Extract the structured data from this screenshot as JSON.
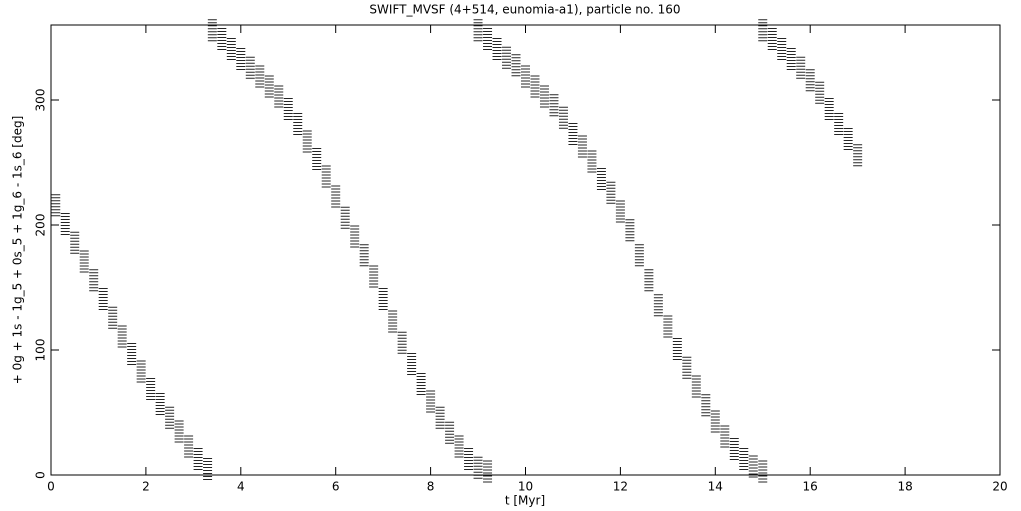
{
  "chart_data": {
    "type": "scatter",
    "title": "SWIFT_MVSF (4+514, eunomia-a1), particle no. 160",
    "x_label": "t [Myr]",
    "y_label": "+ 0g + 1s - 1g_5 + 0s_5 + 1g_6 - 1s_6 [deg]",
    "xlim": [
      0,
      20
    ],
    "ylim": [
      0,
      360
    ],
    "xticks": [
      0,
      2,
      4,
      6,
      8,
      10,
      12,
      14,
      16,
      18,
      20
    ],
    "yticks": [
      0,
      100,
      200,
      300
    ],
    "color": "#000000",
    "series": [
      {
        "x": [
          0.1,
          0.3,
          0.5,
          0.7,
          0.9,
          1.1,
          1.3,
          1.5,
          1.7,
          1.9,
          2.1,
          2.3,
          2.5,
          2.7,
          2.9,
          3.1,
          3.3,
          3.4,
          3.6,
          3.8,
          4.0,
          4.2,
          4.4,
          4.6,
          4.8,
          5.0,
          5.2,
          5.4,
          5.6,
          5.8,
          6.0,
          6.2,
          6.4,
          6.6,
          6.8,
          7.0,
          7.2,
          7.4,
          7.6,
          7.8,
          8.0,
          8.2,
          8.4,
          8.6,
          8.8,
          9.0,
          9.2,
          9.0,
          9.2,
          9.4,
          9.6,
          9.8,
          10.0,
          10.2,
          10.4,
          10.6,
          10.8,
          11.0,
          11.2,
          11.4,
          11.6,
          11.8,
          12.0,
          12.2,
          12.4,
          12.6,
          12.8,
          13.0,
          13.2,
          13.4,
          13.6,
          13.8,
          14.0,
          14.2,
          14.4,
          14.6,
          14.8,
          15.0,
          15.0,
          15.2,
          15.4,
          15.6,
          15.8,
          16.0,
          16.2,
          16.4,
          16.6,
          16.8,
          17.0
        ],
        "values": [
          215,
          200,
          185,
          170,
          155,
          140,
          125,
          110,
          96,
          82,
          68,
          56,
          45,
          34,
          22,
          12,
          4,
          355,
          348,
          340,
          332,
          325,
          318,
          310,
          302,
          292,
          280,
          266,
          252,
          238,
          222,
          205,
          190,
          175,
          158,
          140,
          122,
          105,
          88,
          72,
          58,
          45,
          33,
          22,
          12,
          5,
          2,
          355,
          348,
          340,
          333,
          327,
          318,
          310,
          302,
          295,
          285,
          272,
          262,
          250,
          236,
          225,
          210,
          195,
          175,
          155,
          135,
          118,
          100,
          85,
          70,
          55,
          42,
          30,
          20,
          12,
          6,
          2,
          355,
          348,
          340,
          332,
          325,
          315,
          305,
          292,
          280,
          268,
          255
        ]
      }
    ]
  }
}
